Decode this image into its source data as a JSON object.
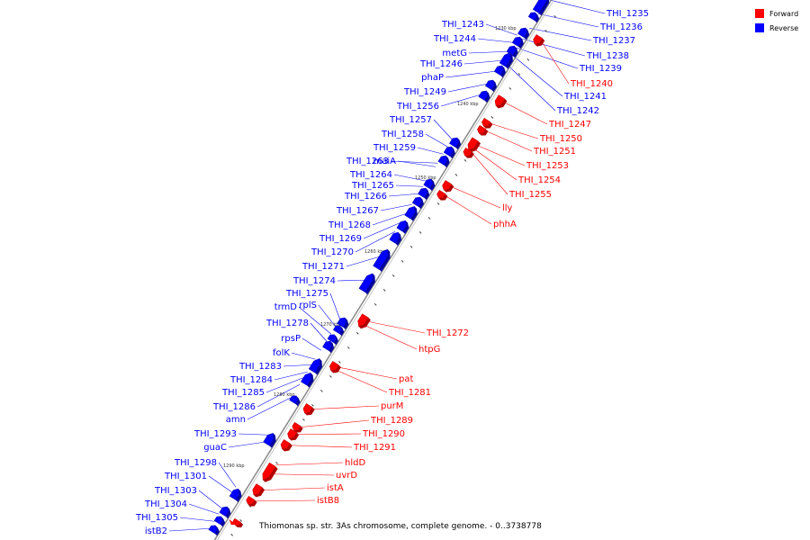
{
  "legend": [
    {
      "label": "Forward",
      "color": "#ff0000"
    },
    {
      "label": "Reverse",
      "color": "#0000ff"
    }
  ],
  "caption": "Thiomonas sp. str. 3As chromosome, complete genome. - 0..3738778",
  "colors": {
    "forward": "#ff0000",
    "reverse": "#0000ff",
    "backbone": "#888888",
    "forward_dark": "#b00000",
    "reverse_dark": "#0000a0"
  },
  "kbp_marks": [
    "1230 kbp",
    "1240 kbp",
    "1250 kbp",
    "1260 kbp",
    "1270 kbp",
    "1280 kbp",
    "1290 kbp"
  ],
  "reverse_genes": [
    "THI_1235",
    "THI_1236",
    "THI_1237",
    "THI_1238",
    "THI_1239",
    "THI_1241",
    "THI_1242",
    "THI_1243",
    "THI_1244",
    "metG",
    "THI_1246",
    "phaP",
    "THI_1249",
    "THI_1256",
    "THI_1257",
    "THI_1258",
    "THI_1259",
    "THI_1263",
    "maiA",
    "THI_1264",
    "THI_1265",
    "THI_1266",
    "THI_1267",
    "THI_1268",
    "THI_1269",
    "THI_1270",
    "THI_1271",
    "THI_1274",
    "THI_1275",
    "rplS",
    "trmD",
    "THI_1278",
    "rpsP",
    "folK",
    "THI_1283",
    "THI_1284",
    "THI_1285",
    "THI_1286",
    "amn",
    "THI_1293",
    "guaC",
    "THI_1298",
    "THI_1301",
    "THI_1303",
    "THI_1304",
    "THI_1305",
    "istB2"
  ],
  "forward_genes": [
    "THI_1240",
    "THI_1247",
    "THI_1250",
    "THI_1251",
    "THI_1253",
    "THI_1254",
    "THI_1255",
    "lly",
    "phhA",
    "THI_1272",
    "htpG",
    "pat",
    "THI_1281",
    "purM",
    "THI_1289",
    "THI_1290",
    "THI_1291",
    "hldD",
    "uvrD",
    "istA",
    "istB8"
  ]
}
